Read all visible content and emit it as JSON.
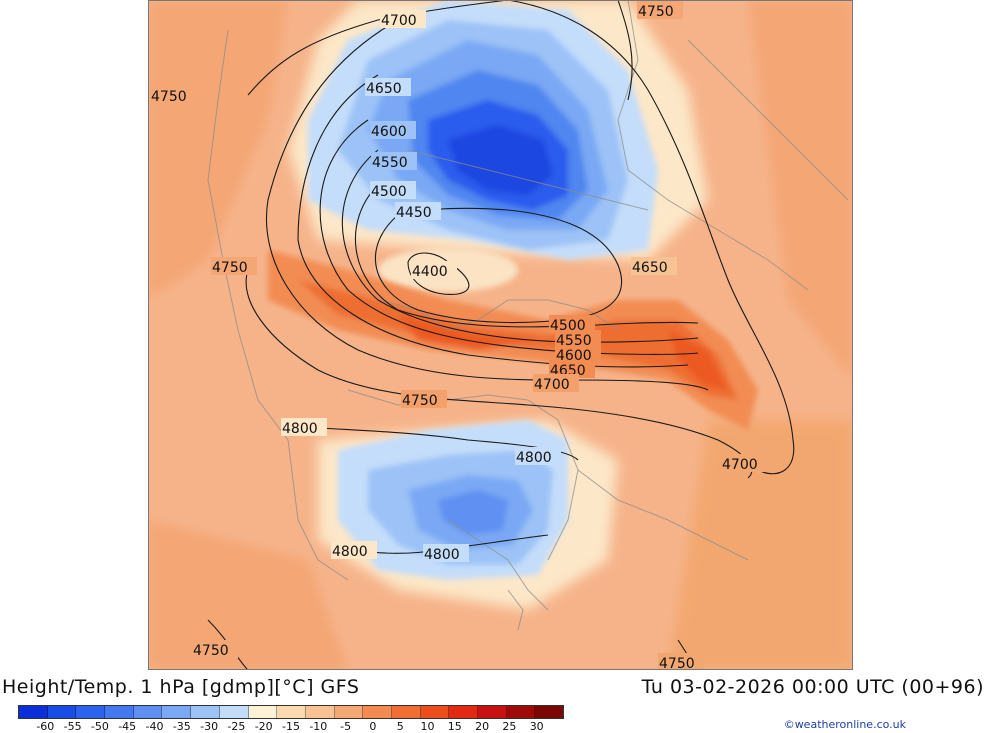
{
  "title": {
    "left": "Height/Temp. 1 hPa [gdmp][°C] GFS",
    "right": "Tu 03-02-2026 00:00 UTC (00+96)"
  },
  "credit": "©weatheronline.co.uk",
  "colorbar": {
    "colors": [
      "#0a2fd6",
      "#1a4ce6",
      "#2e63ee",
      "#4479f0",
      "#5e90f2",
      "#7aa8f4",
      "#9cc2f7",
      "#c2dcfa",
      "#fdf1d6",
      "#fbd9b0",
      "#f8c393",
      "#f5a872",
      "#f28c52",
      "#ef6e33",
      "#ec4e1c",
      "#e22a12",
      "#c81212",
      "#a00a0a",
      "#7a0606"
    ],
    "ticks": [
      "-60",
      "-55",
      "-50",
      "-45",
      "-40",
      "-35",
      "-30",
      "-25",
      "-20",
      "-15",
      "-10",
      "-5",
      "0",
      "5",
      "10",
      "15",
      "20",
      "25",
      "30"
    ]
  },
  "contour_labels": [
    {
      "text": "4700"
    },
    {
      "text": "4750"
    },
    {
      "text": "4750"
    },
    {
      "text": "4650"
    },
    {
      "text": "4600"
    },
    {
      "text": "4550"
    },
    {
      "text": "4500"
    },
    {
      "text": "4450"
    },
    {
      "text": "4400"
    },
    {
      "text": "4750"
    },
    {
      "text": "4650"
    },
    {
      "text": "4500"
    },
    {
      "text": "4550"
    },
    {
      "text": "4600"
    },
    {
      "text": "4650"
    },
    {
      "text": "4700"
    },
    {
      "text": "4750"
    },
    {
      "text": "4800"
    },
    {
      "text": "4800"
    },
    {
      "text": "4700"
    },
    {
      "text": "4800"
    },
    {
      "text": "4800"
    },
    {
      "text": "4750"
    },
    {
      "text": "4750"
    }
  ],
  "colors": {
    "background_warm": "#f6b98a",
    "warm_mid": "#f3a06a",
    "cold_core": "#1e55e8",
    "label_link": "#1a3fa6"
  }
}
